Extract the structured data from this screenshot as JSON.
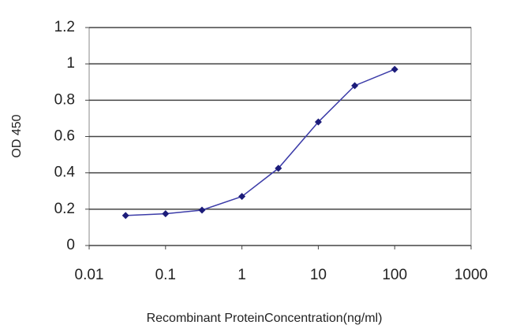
{
  "chart_data": {
    "type": "line",
    "xlabel": "Recombinant ProteinConcentration(ng/ml)",
    "ylabel": "OD 450",
    "x": [
      0.03,
      0.1,
      0.3,
      1,
      3,
      10,
      30,
      100
    ],
    "values": [
      0.165,
      0.175,
      0.195,
      0.27,
      0.425,
      0.68,
      0.88,
      0.97
    ],
    "color": "#3b3ba8",
    "marker_color": "#1c1c7a",
    "xscale": "log",
    "xlim": [
      0.01,
      1000
    ],
    "xticks": [
      0.01,
      0.1,
      1,
      10,
      100,
      1000
    ],
    "ylim": [
      0,
      1.2
    ],
    "yticks": [
      0,
      0.2,
      0.4,
      0.6,
      0.8,
      1,
      1.2
    ],
    "grid": true
  }
}
